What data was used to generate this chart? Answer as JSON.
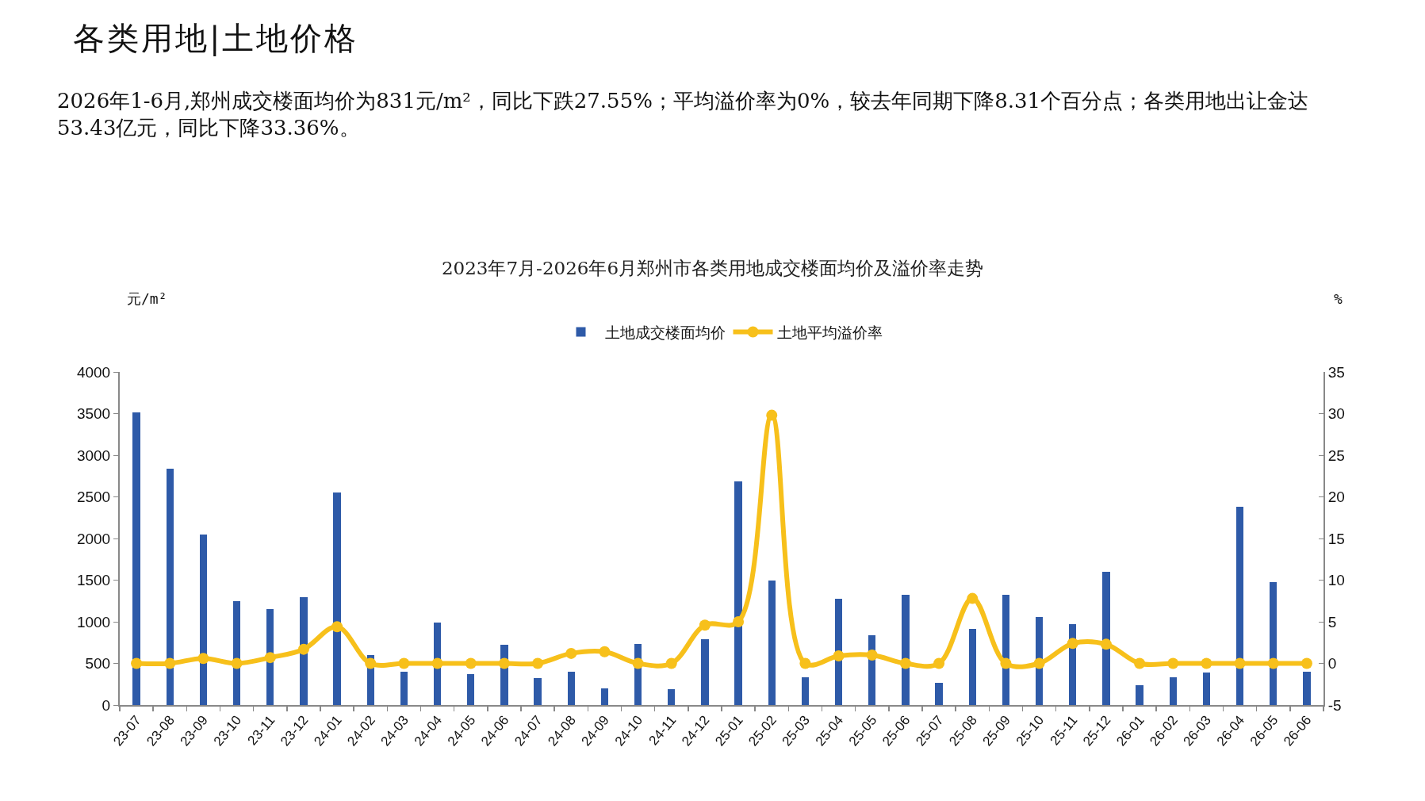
{
  "chart_data": {
    "type": "bar",
    "title": "2023年7月-2026年6月郑州市各类用地成交楼面均价及溢价率走势",
    "annotations": [
      "各类用地|土地价格",
      "2026年1-6月,郑州成交楼面均价为831元/m²，同比下跌27.55%；平均溢价率为0%，较去年同期下降8.31个百分点；各类用地出让金达53.43亿元，同比下降33.36%。"
    ],
    "ylabel": "元/m²",
    "y2label": "%",
    "categories": [
      "23-07",
      "23-08",
      "23-09",
      "23-10",
      "23-11",
      "23-12",
      "24-01",
      "24-02",
      "24-03",
      "24-04",
      "24-05",
      "24-06",
      "24-07",
      "24-08",
      "24-09",
      "24-10",
      "24-11",
      "24-12",
      "25-01",
      "25-02",
      "25-03",
      "25-04",
      "25-05",
      "25-06",
      "25-07",
      "25-08",
      "25-09",
      "25-10",
      "25-11",
      "25-12",
      "26-01",
      "26-02",
      "26-03",
      "26-04",
      "26-05",
      "26-06"
    ],
    "series": [
      {
        "name": "土地成交楼面均价",
        "color": "#2e5aa8",
        "values": [
          3510,
          2840,
          2050,
          1250,
          1150,
          1300,
          2550,
          600,
          400,
          990,
          370,
          720,
          320,
          400,
          200,
          730,
          190,
          790,
          2690,
          1500,
          330,
          1280,
          840,
          1320,
          270,
          910,
          1320,
          1060,
          970,
          1600,
          240,
          330,
          390,
          2380,
          1480,
          400
        ]
      },
      {
        "name": "土地平均溢价率",
        "type": "line",
        "axis": "y2",
        "color": "#f7c01b",
        "values": [
          0,
          0,
          0.6,
          0,
          0.7,
          1.7,
          4.4,
          0,
          0,
          0,
          0,
          0,
          0,
          1.2,
          1.4,
          0,
          0,
          4.6,
          5.0,
          29.8,
          0,
          0.9,
          1.0,
          0,
          0,
          7.8,
          0,
          0,
          2.4,
          2.3,
          0,
          0,
          0,
          0,
          0,
          0
        ]
      }
    ],
    "ylim": [
      0,
      4000
    ],
    "yticks": [
      0,
      500,
      1000,
      1500,
      2000,
      2500,
      3000,
      3500,
      4000
    ],
    "y2lim": [
      -5,
      35
    ],
    "y2ticks": [
      -5,
      0,
      5,
      10,
      15,
      20,
      25,
      30,
      35
    ],
    "grid": false,
    "legend": "top",
    "marker": "circle",
    "line_style": "solid"
  }
}
